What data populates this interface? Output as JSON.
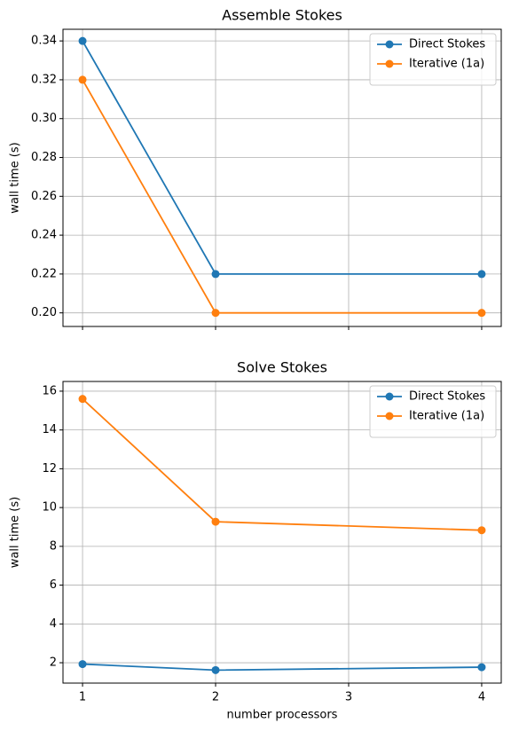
{
  "chart_data": [
    {
      "type": "line",
      "title": "Assemble Stokes",
      "ylabel": "wall time (s)",
      "x": [
        1,
        2,
        4
      ],
      "series": [
        {
          "name": "Direct Stokes",
          "color": "#1f77b4",
          "values": [
            0.34,
            0.22,
            0.22
          ]
        },
        {
          "name": "Iterative (1a)",
          "color": "#ff7f0e",
          "values": [
            0.32,
            0.2,
            0.2
          ]
        }
      ],
      "xlim": [
        0.853,
        4.147
      ],
      "xticks": [
        1,
        2,
        3,
        4
      ],
      "xtick_labels": false,
      "ylim": [
        0.193,
        0.346
      ],
      "yticks": [
        {
          "value": 0.2,
          "label": "0.20"
        },
        0.22,
        0.24,
        0.26,
        0.28,
        {
          "value": 0.3,
          "label": "0.30"
        },
        0.32,
        0.34
      ],
      "grid": true,
      "legend": "upper right"
    },
    {
      "type": "line",
      "title": "Solve Stokes",
      "ylabel": "wall time (s)",
      "xlabel": "number processors",
      "x": [
        1,
        2,
        4
      ],
      "series": [
        {
          "name": "Direct Stokes",
          "color": "#1f77b4",
          "values": [
            1.93,
            1.62,
            1.77
          ]
        },
        {
          "name": "Iterative (1a)",
          "color": "#ff7f0e",
          "values": [
            15.6,
            9.27,
            8.83
          ]
        }
      ],
      "xlim": [
        0.853,
        4.147
      ],
      "xticks": [
        1,
        2,
        3,
        4
      ],
      "xtick_labels": true,
      "ylim": [
        0.95,
        16.5
      ],
      "yticks": [
        2,
        4,
        6,
        8,
        10,
        12,
        14,
        16
      ],
      "grid": true,
      "legend": "upper right"
    }
  ]
}
